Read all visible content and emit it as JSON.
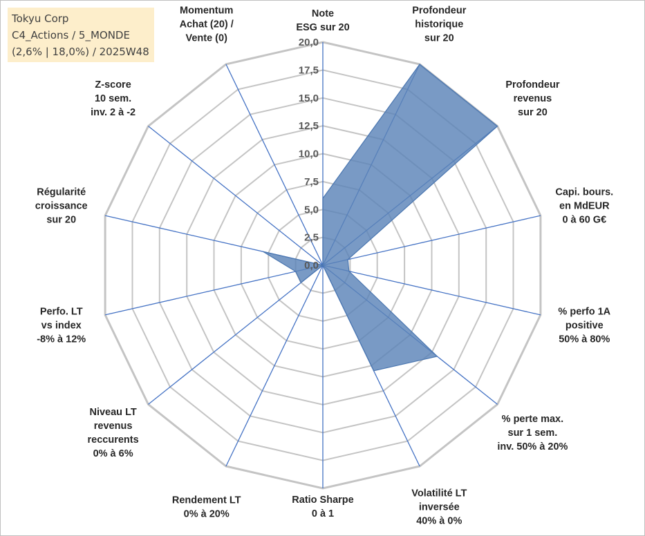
{
  "header": {
    "line1": "Tokyu Corp",
    "line2": "C4_Actions / 5_MONDE",
    "line3": "(2,6% | 18,0%) / 2025W48"
  },
  "chart_data": {
    "type": "radar",
    "rmin": 0,
    "rmax": 20,
    "ticks": [
      "0,0",
      "2,5",
      "5,0",
      "7,5",
      "10,0",
      "12,5",
      "15,0",
      "17,5",
      "20,0"
    ],
    "axes": [
      {
        "label": [
          "Note",
          "ESG sur 20"
        ],
        "value": 6.0
      },
      {
        "label": [
          "Profondeur",
          "historique",
          "sur 20"
        ],
        "value": 20.0
      },
      {
        "label": [
          "Profondeur",
          "revenus",
          "sur 20"
        ],
        "value": 20.0
      },
      {
        "label": [
          "Capi. bours.",
          "en MdEUR",
          "0 à 60 G€"
        ],
        "value": 2.3
      },
      {
        "label": [
          "% perfo 1A",
          "positive",
          "50% à 80%"
        ],
        "value": 2.4
      },
      {
        "label": [
          "% perte max.",
          "sur 1 sem.",
          "inv. 50% à 20%"
        ],
        "value": 13.1
      },
      {
        "label": [
          "Volatilité LT",
          "inversée",
          "40% à 0%"
        ],
        "value": 10.5
      },
      {
        "label": [
          "Ratio Sharpe",
          "0 à 1"
        ],
        "value": 0.0
      },
      {
        "label": [
          "Rendement LT",
          "0% à 20%"
        ],
        "value": 0.0
      },
      {
        "label": [
          "Niveau LT",
          "revenus",
          "reccurents",
          "0% à 6%"
        ],
        "value": 2.5
      },
      {
        "label": [
          "Perfo. LT",
          "vs index",
          "-8% à 12%"
        ],
        "value": 2.5
      },
      {
        "label": [
          "Régularité",
          "croissance",
          "sur 20"
        ],
        "value": 5.5
      },
      {
        "label": [
          "Z-score",
          "10 sem.",
          "inv. 2 à -2"
        ],
        "value": 0.0
      },
      {
        "label": [
          "Momentum",
          "Achat (20) /",
          "Vente (0)"
        ],
        "value": 0.0
      }
    ],
    "colors": {
      "grid": "#c4c4c4",
      "spoke": "#4472c4",
      "fill": "#5b84b8",
      "stroke": "#4a76b0"
    }
  }
}
